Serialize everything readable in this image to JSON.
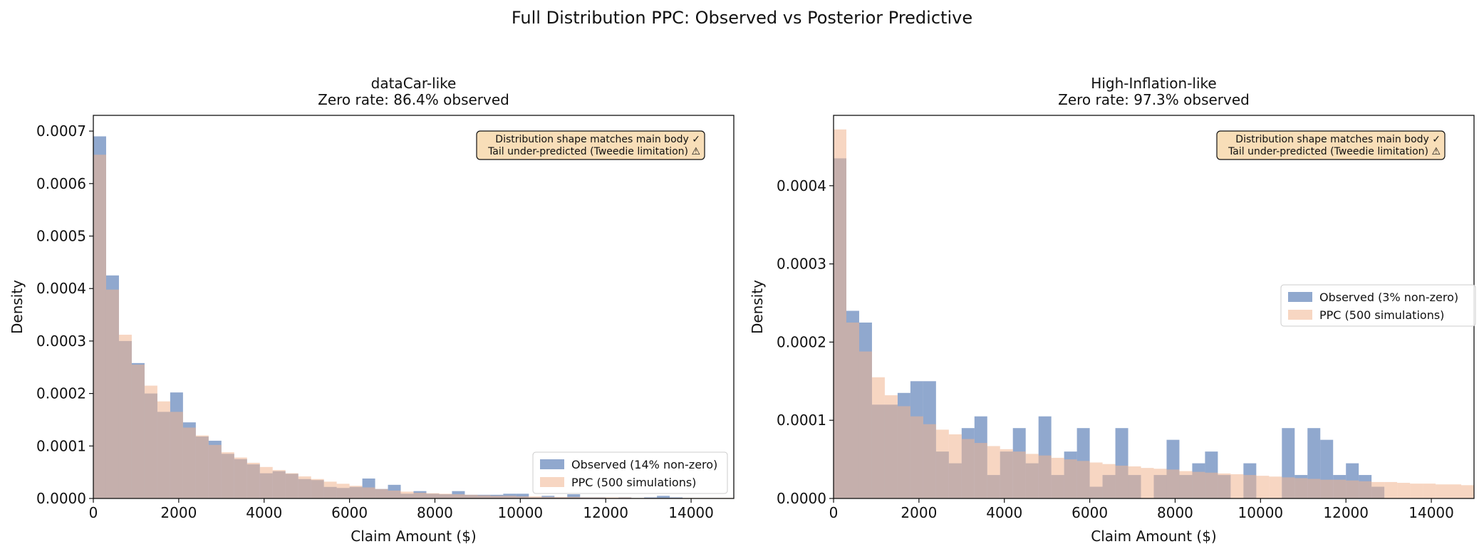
{
  "figure_title": "Full Distribution PPC: Observed vs Posterior Predictive",
  "colors": {
    "observed": "#4c72b0",
    "ppc": "#f0b48f",
    "annotation_bg": "#f8deb8"
  },
  "chart_data": [
    {
      "type": "bar",
      "title_line1": "dataCar-like",
      "title_line2": "Zero rate: 86.4% observed",
      "xlabel": "Claim Amount ($)",
      "ylabel": "Density",
      "xlim": [
        0,
        15000
      ],
      "ylim": [
        0,
        0.00073
      ],
      "xticks": [
        0,
        2000,
        4000,
        6000,
        8000,
        10000,
        12000,
        14000
      ],
      "yticks": [
        0,
        0.0001,
        0.0002,
        0.0003,
        0.0004,
        0.0005,
        0.0006,
        0.0007
      ],
      "ytick_labels": [
        "0.0000",
        "0.0001",
        "0.0002",
        "0.0003",
        "0.0004",
        "0.0005",
        "0.0006",
        "0.0007"
      ],
      "bin_width": 300,
      "legend_position": "lower-right",
      "annotation": [
        "Distribution shape matches main body ✓",
        "Tail under-predicted (Tweedie limitation) ⚠"
      ],
      "series": [
        {
          "name": "Observed (14% non-zero)",
          "values": [
            0.00069,
            0.000425,
            0.0003,
            0.000258,
            0.0002,
            0.000165,
            0.000202,
            0.000145,
            0.000118,
            0.00011,
            8.5e-05,
            7.5e-05,
            6.5e-05,
            4.8e-05,
            5.2e-05,
            4.7e-05,
            3.7e-05,
            3.5e-05,
            2.2e-05,
            2e-05,
            2.2e-05,
            3.8e-05,
            1.8e-05,
            2.6e-05,
            9e-06,
            1.4e-05,
            9e-06,
            8e-06,
            1.4e-05,
            7e-06,
            7e-06,
            7e-06,
            9e-06,
            9e-06,
            2e-06,
            5e-06,
            2e-06,
            8e-06,
            2e-06,
            2e-06,
            0,
            2e-06,
            0,
            2e-06,
            5e-06,
            2e-06,
            0,
            0,
            0,
            0
          ]
        },
        {
          "name": "PPC (500 simulations)",
          "values": [
            0.000655,
            0.000398,
            0.000312,
            0.000255,
            0.000215,
            0.000185,
            0.000165,
            0.000135,
            0.00012,
            0.000102,
            8.8e-05,
            7.8e-05,
            6.8e-05,
            6e-05,
            5.4e-05,
            4.8e-05,
            4.2e-05,
            3.7e-05,
            3.2e-05,
            2.8e-05,
            2.4e-05,
            2.1e-05,
            1.8e-05,
            1.5e-05,
            1.3e-05,
            1.1e-05,
            1e-05,
            9e-06,
            8e-06,
            7e-06,
            6e-06,
            5e-06,
            5e-06,
            4e-06,
            4e-06,
            3e-06,
            3e-06,
            3e-06,
            2e-06,
            2e-06,
            2e-06,
            2e-06,
            1e-06,
            1e-06,
            1e-06,
            1e-06,
            1e-06,
            1e-06,
            1e-06,
            1e-06
          ]
        }
      ]
    },
    {
      "type": "bar",
      "title_line1": "High-Inflation-like",
      "title_line2": "Zero rate: 97.3% observed",
      "xlabel": "Claim Amount ($)",
      "ylabel": "Density",
      "xlim": [
        0,
        15000
      ],
      "ylim": [
        0,
        0.00049
      ],
      "xticks": [
        0,
        2000,
        4000,
        6000,
        8000,
        10000,
        12000,
        14000
      ],
      "yticks": [
        0,
        0.0001,
        0.0002,
        0.0003,
        0.0004
      ],
      "ytick_labels": [
        "0.0000",
        "0.0001",
        "0.0002",
        "0.0003",
        "0.0004"
      ],
      "bin_width": 300,
      "legend_position": "center-right",
      "annotation": [
        "Distribution shape matches main body ✓",
        "Tail under-predicted (Tweedie limitation) ⚠"
      ],
      "series": [
        {
          "name": "Observed (3% non-zero)",
          "values": [
            0.000435,
            0.00024,
            0.000225,
            0.00012,
            0.00012,
            0.000135,
            0.00015,
            0.00015,
            6e-05,
            4.5e-05,
            9e-05,
            0.000105,
            3e-05,
            6e-05,
            9e-05,
            4.5e-05,
            0.000105,
            3e-05,
            6e-05,
            9e-05,
            1.5e-05,
            3e-05,
            9e-05,
            3e-05,
            0,
            3e-05,
            7.5e-05,
            3e-05,
            4.5e-05,
            6e-05,
            3e-05,
            0,
            4.5e-05,
            0,
            0,
            9e-05,
            3e-05,
            9e-05,
            7.5e-05,
            3e-05,
            4.5e-05,
            3e-05,
            1.5e-05,
            0,
            0,
            0,
            0,
            0,
            0,
            0
          ]
        },
        {
          "name": "PPC (500 simulations)",
          "values": [
            0.000472,
            0.000225,
            0.000188,
            0.000155,
            0.000132,
            0.000118,
            0.000105,
            9.5e-05,
            8.8e-05,
            8.2e-05,
            7.6e-05,
            7.1e-05,
            6.7e-05,
            6.3e-05,
            6e-05,
            5.7e-05,
            5.5e-05,
            5.2e-05,
            5e-05,
            4.8e-05,
            4.6e-05,
            4.4e-05,
            4.2e-05,
            4.1e-05,
            3.9e-05,
            3.8e-05,
            3.7e-05,
            3.5e-05,
            3.4e-05,
            3.3e-05,
            3.2e-05,
            3.1e-05,
            3e-05,
            2.9e-05,
            2.8e-05,
            2.7e-05,
            2.6e-05,
            2.5e-05,
            2.4e-05,
            2.4e-05,
            2.3e-05,
            2.2e-05,
            2.1e-05,
            2.1e-05,
            2e-05,
            1.9e-05,
            1.9e-05,
            1.8e-05,
            1.8e-05,
            1.7e-05
          ]
        }
      ]
    }
  ]
}
